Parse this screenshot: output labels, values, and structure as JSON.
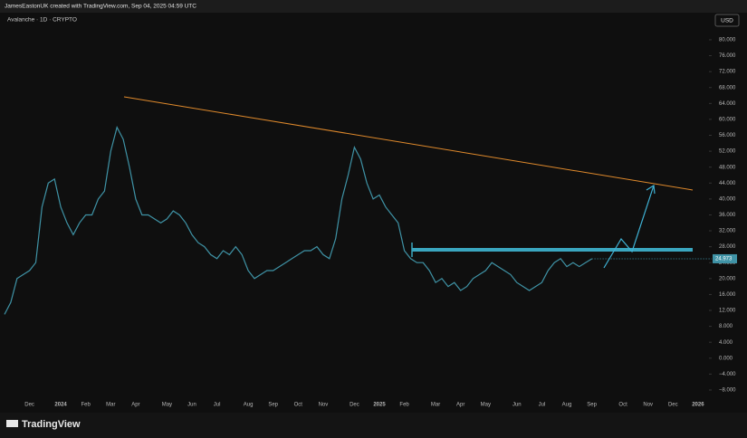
{
  "header": {
    "credit": "JamesEastonUK created with TradingView.com, Sep 04, 2025 04:59 UTC",
    "symbol": "Avalanche · 1D · CRYPTO",
    "currency": "USD",
    "logo": "TradingView"
  },
  "chart_data": {
    "type": "line",
    "color": "#3f93a6",
    "grid": false,
    "categories": [
      null,
      null,
      null,
      null,
      "Dec",
      null,
      null,
      null,
      null,
      "2024",
      null,
      null,
      null,
      "Feb",
      null,
      null,
      null,
      "Mar",
      null,
      null,
      null,
      "Apr",
      null,
      null,
      null,
      null,
      "May",
      null,
      null,
      null,
      "Jun",
      null,
      null,
      null,
      "Jul",
      null,
      null,
      null,
      null,
      "Aug",
      null,
      null,
      null,
      "Sep",
      null,
      null,
      null,
      "Oct",
      null,
      null,
      null,
      "Nov",
      null,
      null,
      null,
      null,
      "Dec",
      null,
      null,
      null,
      "2025",
      null,
      null,
      null,
      "Feb",
      null,
      null,
      null,
      null,
      "Mar",
      null,
      null,
      null,
      "Apr",
      null,
      null,
      null,
      "May",
      null,
      null,
      null,
      null,
      "Jun",
      null,
      null,
      null,
      "Jul",
      null,
      null,
      null,
      "Aug",
      null,
      null,
      null,
      "Sep",
      null,
      null,
      null,
      null,
      "Oct",
      null,
      null,
      null,
      "Nov",
      null,
      null,
      null,
      "Dec",
      null,
      null,
      null,
      "2026",
      null
    ],
    "values": [
      11,
      14,
      20,
      21,
      22,
      24,
      38,
      44,
      45,
      38,
      34,
      31,
      34,
      36,
      36,
      40,
      42,
      52,
      58,
      55,
      48,
      40,
      36,
      36,
      35,
      34,
      35,
      37,
      36,
      34,
      31,
      29,
      28,
      26,
      25,
      27,
      26,
      28,
      26,
      22,
      20,
      21,
      22,
      22,
      23,
      24,
      25,
      26,
      27,
      27,
      28,
      26,
      25,
      30,
      40,
      46,
      53,
      50,
      44,
      40,
      41,
      38,
      36,
      34,
      27,
      25,
      24,
      24,
      22,
      19,
      20,
      18,
      19,
      17,
      18,
      20,
      21,
      22,
      24,
      23,
      22,
      21,
      19,
      18,
      17,
      18,
      19,
      22,
      24,
      25,
      23,
      24,
      23,
      24,
      24.973,
      null,
      null,
      null,
      null,
      null,
      null,
      null,
      null,
      null,
      null,
      null,
      null,
      null,
      null,
      null,
      null,
      null,
      null
    ],
    "ylim": [
      -9.6,
      85.9
    ],
    "yticks": [
      {
        "value": 80,
        "label": "80.000"
      },
      {
        "value": 76,
        "label": "76.000"
      },
      {
        "value": 72,
        "label": "72.000"
      },
      {
        "value": 68,
        "label": "68.000"
      },
      {
        "value": 64,
        "label": "64.000"
      },
      {
        "value": 60,
        "label": "60.000"
      },
      {
        "value": 56,
        "label": "56.000"
      },
      {
        "value": 52,
        "label": "52.000"
      },
      {
        "value": 48,
        "label": "48.000"
      },
      {
        "value": 44,
        "label": "44.000"
      },
      {
        "value": 40,
        "label": "40.000"
      },
      {
        "value": 36,
        "label": "36.000"
      },
      {
        "value": 32,
        "label": "32.000"
      },
      {
        "value": 28,
        "label": "28.000"
      },
      {
        "value": 24,
        "label": "24.000"
      },
      {
        "value": 20,
        "label": "20.000"
      },
      {
        "value": 16,
        "label": "16.000"
      },
      {
        "value": 12,
        "label": "12.000"
      },
      {
        "value": 8,
        "label": "8.000"
      },
      {
        "value": 4,
        "label": "4.000"
      },
      {
        "value": 0,
        "label": "0.000"
      },
      {
        "value": -4,
        "label": "−4.000"
      },
      {
        "value": -8,
        "label": "−8.000"
      }
    ]
  }
}
